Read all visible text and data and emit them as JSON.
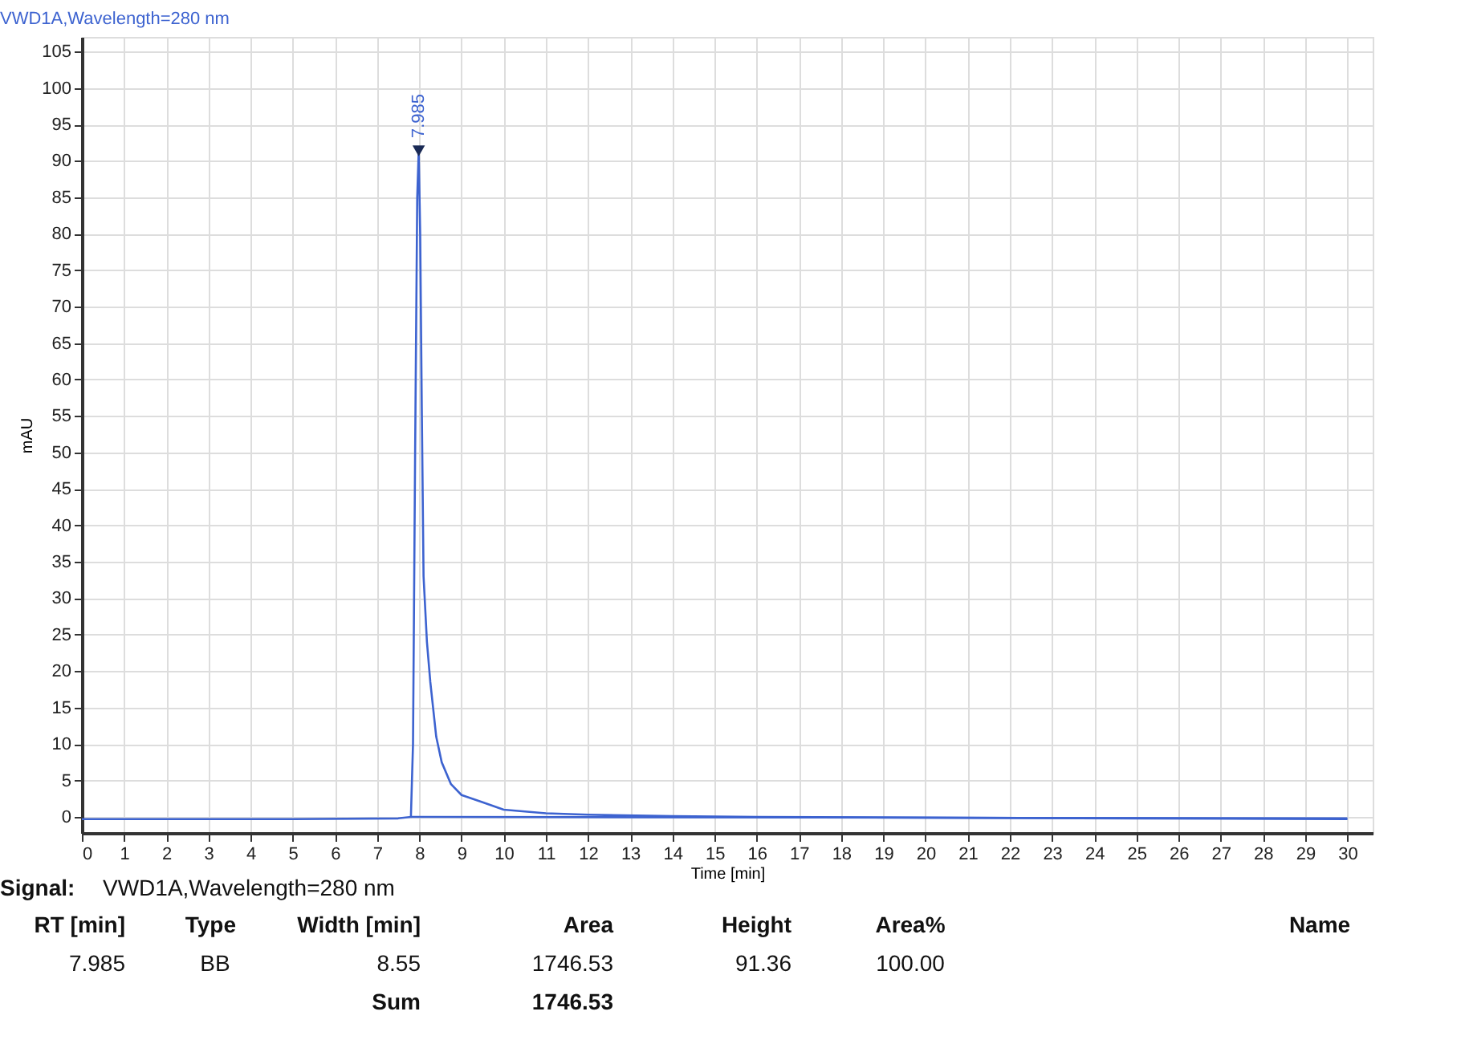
{
  "chart_data": {
    "type": "line",
    "title": "VWD1A,Wavelength=280 nm",
    "xlabel": "Time [min]",
    "ylabel": "mAU",
    "xlim": [
      0,
      30.6
    ],
    "ylim": [
      -2.2,
      107
    ],
    "xticks": [
      0,
      1,
      2,
      3,
      4,
      5,
      6,
      7,
      8,
      9,
      10,
      11,
      12,
      13,
      14,
      15,
      16,
      17,
      18,
      19,
      20,
      21,
      22,
      23,
      24,
      25,
      26,
      27,
      28,
      29,
      30
    ],
    "yticks": [
      0,
      5,
      10,
      15,
      20,
      25,
      30,
      35,
      40,
      45,
      50,
      55,
      60,
      65,
      70,
      75,
      80,
      85,
      90,
      95,
      100,
      105
    ],
    "grid": true,
    "marker": "none",
    "line_style": "solid",
    "series": [
      {
        "color": "#3d63d0",
        "x": [
          0,
          5,
          7.5,
          7.8,
          7.85,
          7.9,
          7.95,
          7.985,
          8.02,
          8.06,
          8.1,
          8.18,
          8.26,
          8.4,
          8.53,
          8.75,
          9.0,
          9.5,
          10,
          11,
          12,
          14,
          16,
          20,
          25,
          30
        ],
        "values": [
          -0.3,
          -0.3,
          -0.2,
          0,
          10,
          50,
          85,
          91.36,
          80,
          55,
          33,
          24,
          18.5,
          11,
          7.5,
          4.5,
          3,
          2,
          1.0,
          0.5,
          0.3,
          0.1,
          0,
          -0.1,
          -0.2,
          -0.3
        ]
      },
      {
        "color": "#3d63d0",
        "x": [
          7.8,
          30
        ],
        "values": [
          0,
          -0.2
        ]
      }
    ],
    "annotations": [
      {
        "text": "7.985",
        "x": 7.985,
        "y": 91.36
      },
      "Signal:",
      "VWD1A,Wavelength=280 nm",
      "RT [min]",
      "Type",
      "Width [min]",
      "Area",
      "Height",
      "Area%",
      "Name",
      "7.985",
      "BB",
      "8.55",
      "1746.53",
      "91.36",
      "100.00",
      "Sum",
      "1746.53"
    ]
  }
}
